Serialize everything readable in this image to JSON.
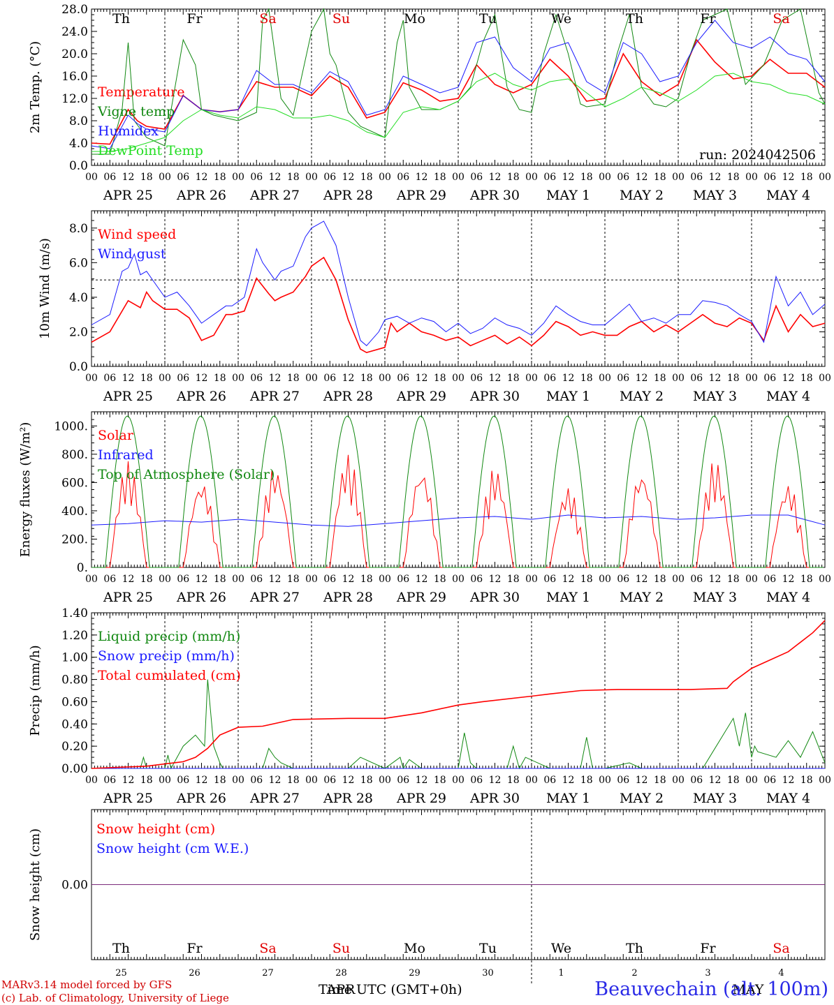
{
  "x_tick_hours": [
    "00",
    "06",
    "12",
    "18"
  ],
  "day_letters": [
    "Th",
    "Fr",
    "Sa",
    "Su",
    "Mo",
    "Tu",
    "We",
    "Th",
    "Fr",
    "Sa"
  ],
  "weekend_color": "#e00000",
  "weekend_days": [
    2,
    3,
    9
  ],
  "date_labels": [
    "APR 25",
    "APR 26",
    "APR 27",
    "APR 28",
    "APR 29",
    "APR 30",
    "MAY  1",
    "MAY  2",
    "MAY  3",
    "MAY  4"
  ],
  "bottom_day_numbers": [
    "25",
    "26",
    "27",
    "28",
    "29",
    "30",
    "1",
    "2",
    "3",
    "4"
  ],
  "bottom_month_labels": [
    "APR",
    "MAY"
  ],
  "x_axis_title": "Time UTC (GMT+0h)",
  "run_label": "run: 2024042506",
  "footer": {
    "line1": "MARv3.14 model forced by GFS",
    "line2": "(c) Lab. of Climatology, University of Liege"
  },
  "station": "Beauvechain (alt. 100m)",
  "colors": {
    "red": "#ff0000",
    "blue": "#1a1aff",
    "green": "#118811",
    "lightgreen": "#22dd22",
    "purple": "#7a2a7a"
  },
  "chart_data": [
    {
      "type": "line",
      "ylabel": "2m Temp. (°C)",
      "ylim": [
        0,
        28
      ],
      "yticks": [
        "0.0",
        "4.0",
        "8.0",
        "12.0",
        "16.0",
        "20.0",
        "24.0",
        "28.0"
      ],
      "x_unit": "hours since APR 25 00 UTC",
      "xlim": [
        0,
        240
      ],
      "series": [
        {
          "name": "Temperature",
          "color": "red",
          "x": [
            0,
            6,
            12,
            15,
            18,
            24,
            30,
            36,
            42,
            48,
            54,
            60,
            66,
            72,
            78,
            84,
            90,
            96,
            102,
            108,
            114,
            120,
            126,
            132,
            138,
            144,
            150,
            156,
            162,
            168,
            174,
            180,
            186,
            192,
            198,
            204,
            210,
            216,
            222,
            228,
            234,
            240
          ],
          "values": [
            4.0,
            3.8,
            10.0,
            8.0,
            7.0,
            6.5,
            12.5,
            10.0,
            9.6,
            10.0,
            15.0,
            14.0,
            14.0,
            12.5,
            16.0,
            14.0,
            8.5,
            9.5,
            14.8,
            13.5,
            11.5,
            12.0,
            18.0,
            14.5,
            13.0,
            14.5,
            19.0,
            16.0,
            11.5,
            12.0,
            20.0,
            15.0,
            12.5,
            14.5,
            22.5,
            18.5,
            15.5,
            16.0,
            19.0,
            16.5,
            16.5,
            14.0
          ]
        },
        {
          "name": "Vigne temp",
          "color": "green",
          "x": [
            0,
            6,
            10,
            12,
            14,
            18,
            24,
            30,
            34,
            36,
            40,
            48,
            54,
            56,
            58,
            62,
            66,
            72,
            76,
            78,
            80,
            84,
            88,
            96,
            100,
            102,
            104,
            108,
            114,
            120,
            124,
            128,
            132,
            136,
            140,
            144,
            148,
            152,
            156,
            160,
            162,
            168,
            172,
            176,
            180,
            184,
            188,
            192,
            196,
            200,
            204,
            208,
            214,
            220,
            226,
            232,
            238,
            240
          ],
          "values": [
            2.0,
            2.0,
            10.0,
            22.0,
            8.0,
            5.0,
            3.5,
            22.5,
            18.0,
            10.0,
            9.0,
            8.0,
            9.5,
            26.0,
            28.0,
            12.0,
            9.0,
            24.0,
            28.0,
            20.0,
            18.0,
            9.5,
            7.0,
            5.0,
            22.0,
            26.0,
            14.0,
            10.0,
            10.0,
            11.5,
            14.0,
            22.0,
            27.0,
            14.0,
            10.0,
            9.5,
            20.0,
            27.0,
            20.0,
            11.0,
            10.5,
            11.0,
            20.0,
            27.0,
            14.0,
            11.0,
            10.5,
            12.0,
            20.0,
            26.0,
            27.0,
            28.0,
            14.5,
            18.0,
            26.0,
            28.0,
            13.0,
            11.0
          ]
        },
        {
          "name": "Humidex",
          "color": "blue",
          "x": [
            0,
            6,
            12,
            15,
            18,
            24,
            30,
            36,
            42,
            48,
            54,
            60,
            66,
            72,
            78,
            84,
            90,
            96,
            102,
            108,
            114,
            120,
            126,
            132,
            138,
            144,
            150,
            156,
            162,
            168,
            174,
            180,
            186,
            192,
            198,
            204,
            210,
            216,
            222,
            228,
            234,
            240
          ],
          "values": [
            3.5,
            3.0,
            9.0,
            7.5,
            6.5,
            6.0,
            12.5,
            10.0,
            9.6,
            10.0,
            17.0,
            14.5,
            14.5,
            13.0,
            16.8,
            15.0,
            9.0,
            10.0,
            16.0,
            14.5,
            13.0,
            14.0,
            22.0,
            23.0,
            17.5,
            15.0,
            21.0,
            22.0,
            15.0,
            13.0,
            22.0,
            20.0,
            15.0,
            16.0,
            22.0,
            26.0,
            22.0,
            21.0,
            23.0,
            20.0,
            19.0,
            15.0
          ]
        },
        {
          "name": "DewPoint Temp",
          "color": "lightgreen",
          "x": [
            0,
            6,
            12,
            18,
            24,
            30,
            36,
            42,
            48,
            54,
            60,
            66,
            72,
            78,
            84,
            90,
            96,
            102,
            108,
            114,
            120,
            126,
            132,
            138,
            144,
            150,
            156,
            162,
            168,
            174,
            180,
            186,
            192,
            198,
            204,
            210,
            216,
            222,
            228,
            234,
            240
          ],
          "values": [
            2.5,
            2.5,
            3.0,
            4.0,
            5.0,
            8.0,
            10.0,
            9.0,
            8.5,
            10.5,
            10.0,
            8.5,
            8.5,
            9.0,
            8.0,
            6.0,
            5.0,
            9.5,
            10.5,
            10.0,
            11.5,
            15.0,
            16.5,
            14.5,
            13.5,
            15.0,
            15.5,
            13.0,
            10.5,
            12.0,
            14.0,
            13.0,
            11.5,
            13.5,
            16.0,
            16.5,
            15.0,
            14.5,
            13.0,
            12.5,
            11.0
          ]
        }
      ]
    },
    {
      "type": "line",
      "ylabel": "10m Wind (m/s)",
      "ylim": [
        0,
        9
      ],
      "yticks": [
        "0.0",
        "2.0",
        "4.0",
        "6.0",
        "8.0"
      ],
      "reference_line": 5.0,
      "x_unit": "hours since APR 25 00 UTC",
      "xlim": [
        0,
        240
      ],
      "series": [
        {
          "name": "Wind speed",
          "color": "red",
          "x": [
            0,
            6,
            12,
            16,
            18,
            20,
            24,
            28,
            32,
            36,
            40,
            44,
            46,
            50,
            54,
            58,
            60,
            62,
            66,
            70,
            72,
            76,
            80,
            84,
            88,
            90,
            96,
            98,
            100,
            104,
            108,
            112,
            116,
            120,
            124,
            128,
            132,
            136,
            140,
            144,
            148,
            152,
            156,
            160,
            164,
            168,
            172,
            176,
            180,
            184,
            188,
            192,
            196,
            200,
            204,
            208,
            212,
            216,
            220,
            224,
            228,
            232,
            236,
            240
          ],
          "values": [
            1.4,
            2.0,
            3.8,
            3.4,
            4.3,
            3.8,
            3.3,
            3.3,
            2.8,
            1.5,
            1.8,
            3.0,
            3.0,
            3.2,
            5.1,
            4.2,
            3.8,
            4.0,
            4.3,
            5.2,
            5.8,
            6.3,
            5.0,
            2.7,
            1.0,
            0.8,
            1.1,
            2.5,
            2.0,
            2.5,
            2.0,
            1.8,
            1.5,
            1.7,
            1.2,
            1.5,
            1.8,
            1.3,
            1.7,
            1.2,
            1.8,
            2.6,
            2.3,
            1.8,
            2.0,
            1.8,
            1.8,
            2.3,
            2.6,
            2.0,
            2.4,
            2.0,
            2.5,
            3.0,
            2.5,
            2.3,
            2.8,
            2.5,
            1.5,
            3.5,
            2.0,
            3.0,
            2.3,
            2.5
          ]
        },
        {
          "name": "Wind gust",
          "color": "blue",
          "x": [
            0,
            6,
            10,
            12,
            14,
            16,
            18,
            20,
            24,
            28,
            32,
            36,
            40,
            44,
            46,
            50,
            54,
            56,
            60,
            62,
            66,
            70,
            72,
            76,
            80,
            84,
            88,
            90,
            94,
            96,
            100,
            104,
            108,
            112,
            116,
            120,
            124,
            128,
            132,
            136,
            140,
            144,
            148,
            152,
            156,
            160,
            164,
            168,
            172,
            176,
            180,
            184,
            188,
            192,
            196,
            200,
            204,
            208,
            212,
            216,
            220,
            224,
            228,
            232,
            236,
            240
          ],
          "values": [
            2.4,
            3.0,
            5.5,
            5.7,
            6.5,
            5.3,
            5.5,
            5.0,
            4.0,
            4.3,
            3.5,
            2.5,
            3.0,
            3.5,
            3.5,
            4.0,
            6.8,
            6.0,
            5.0,
            5.5,
            5.8,
            7.5,
            8.0,
            8.4,
            7.0,
            4.0,
            1.5,
            1.2,
            2.0,
            2.7,
            2.9,
            2.5,
            2.8,
            2.6,
            2.0,
            2.5,
            1.9,
            2.2,
            2.8,
            2.4,
            2.2,
            1.8,
            2.5,
            3.5,
            3.0,
            2.6,
            2.4,
            2.4,
            3.0,
            3.6,
            2.6,
            2.8,
            2.5,
            3.0,
            3.0,
            3.8,
            3.7,
            3.5,
            3.0,
            2.6,
            1.4,
            5.2,
            3.5,
            4.3,
            3.0,
            3.6
          ]
        }
      ]
    },
    {
      "type": "line",
      "ylabel": "Energy fluxes (W/m²)",
      "ylim": [
        0,
        1100
      ],
      "yticks": [
        "0.",
        "200.",
        "400.",
        "600.",
        "800.",
        "1000."
      ],
      "x_unit": "hours since APR 25 00 UTC",
      "xlim": [
        0,
        240
      ],
      "series": [
        {
          "name": "Solar",
          "color": "red",
          "peaks_by_day": [
            750,
            620,
            720,
            800,
            710,
            710,
            570,
            690,
            760,
            600
          ],
          "x": [],
          "values": []
        },
        {
          "name": "Infrared",
          "color": "blue",
          "x": [
            0,
            12,
            24,
            36,
            48,
            60,
            72,
            84,
            96,
            108,
            120,
            132,
            144,
            156,
            168,
            180,
            192,
            204,
            216,
            228,
            240
          ],
          "values": [
            300,
            310,
            330,
            320,
            340,
            320,
            300,
            290,
            310,
            330,
            350,
            360,
            340,
            370,
            350,
            360,
            340,
            350,
            370,
            370,
            300
          ]
        },
        {
          "name": "Top of Atmosphere (Solar)",
          "color": "green",
          "peak": 1070,
          "rise_hour": 4.5,
          "set_hour": 19.0,
          "x": [],
          "values": []
        }
      ]
    },
    {
      "type": "line",
      "ylabel": "Precip (mm/h)",
      "ylim": [
        0,
        1.4
      ],
      "yticks": [
        "0.00",
        "0.20",
        "0.40",
        "0.60",
        "0.80",
        "1.00",
        "1.20",
        "1.40"
      ],
      "x_unit": "hours since APR 25 00 UTC",
      "xlim": [
        0,
        240
      ],
      "series": [
        {
          "name": "Liquid precip (mm/h)",
          "color": "green",
          "x": [
            0,
            16,
            17,
            18,
            24,
            25,
            26,
            30,
            34,
            37,
            38,
            40,
            42,
            43,
            44,
            48,
            56,
            58,
            60,
            62,
            66,
            84,
            88,
            96,
            101,
            102,
            104,
            108,
            112,
            120,
            122,
            124,
            126,
            136,
            138,
            140,
            142,
            150,
            160,
            162,
            164,
            168,
            176,
            180,
            200,
            210,
            212,
            214,
            216,
            217,
            218,
            224,
            228,
            232,
            236,
            240
          ],
          "values": [
            0,
            0,
            0.1,
            0,
            0,
            0.12,
            0,
            0.2,
            0.3,
            0.2,
            0.8,
            0.2,
            0.05,
            0,
            0,
            0,
            0,
            0.18,
            0.1,
            0.05,
            0,
            0,
            0.1,
            0,
            0.1,
            0,
            0.08,
            0,
            0,
            0,
            0.32,
            0.05,
            0,
            0,
            0.2,
            0,
            0.1,
            0,
            0,
            0.28,
            0,
            0,
            0.05,
            0,
            0,
            0.45,
            0.2,
            0.5,
            0.1,
            0.2,
            0.15,
            0.1,
            0.25,
            0.1,
            0.33,
            0.05
          ]
        },
        {
          "name": "Snow precip (mm/h)",
          "color": "blue",
          "x": [
            0,
            240
          ],
          "values": [
            0,
            0
          ]
        },
        {
          "name": "Total cumulated (cm)",
          "color": "red",
          "x": [
            0,
            18,
            24,
            30,
            34,
            38,
            42,
            48,
            56,
            66,
            84,
            96,
            108,
            120,
            128,
            144,
            150,
            160,
            172,
            186,
            196,
            208,
            210,
            216,
            228,
            236,
            240
          ],
          "values": [
            0,
            0.02,
            0.04,
            0.06,
            0.1,
            0.18,
            0.3,
            0.37,
            0.38,
            0.44,
            0.45,
            0.45,
            0.5,
            0.57,
            0.6,
            0.65,
            0.67,
            0.7,
            0.71,
            0.71,
            0.71,
            0.72,
            0.78,
            0.9,
            1.05,
            1.22,
            1.33
          ]
        }
      ]
    },
    {
      "type": "line",
      "ylabel": "Snow height (cm)",
      "yticks": [
        "0.00"
      ],
      "x_unit": "hours since APR 25 00 UTC",
      "xlim": [
        0,
        240
      ],
      "series": [
        {
          "name": "Snow height (cm)",
          "color": "red",
          "x": [
            0,
            240
          ],
          "values": [
            0,
            0
          ]
        },
        {
          "name": "Snow height (cm W.E.)",
          "color": "blue",
          "x": [
            0,
            240
          ],
          "values": [
            0,
            0
          ]
        }
      ]
    }
  ]
}
